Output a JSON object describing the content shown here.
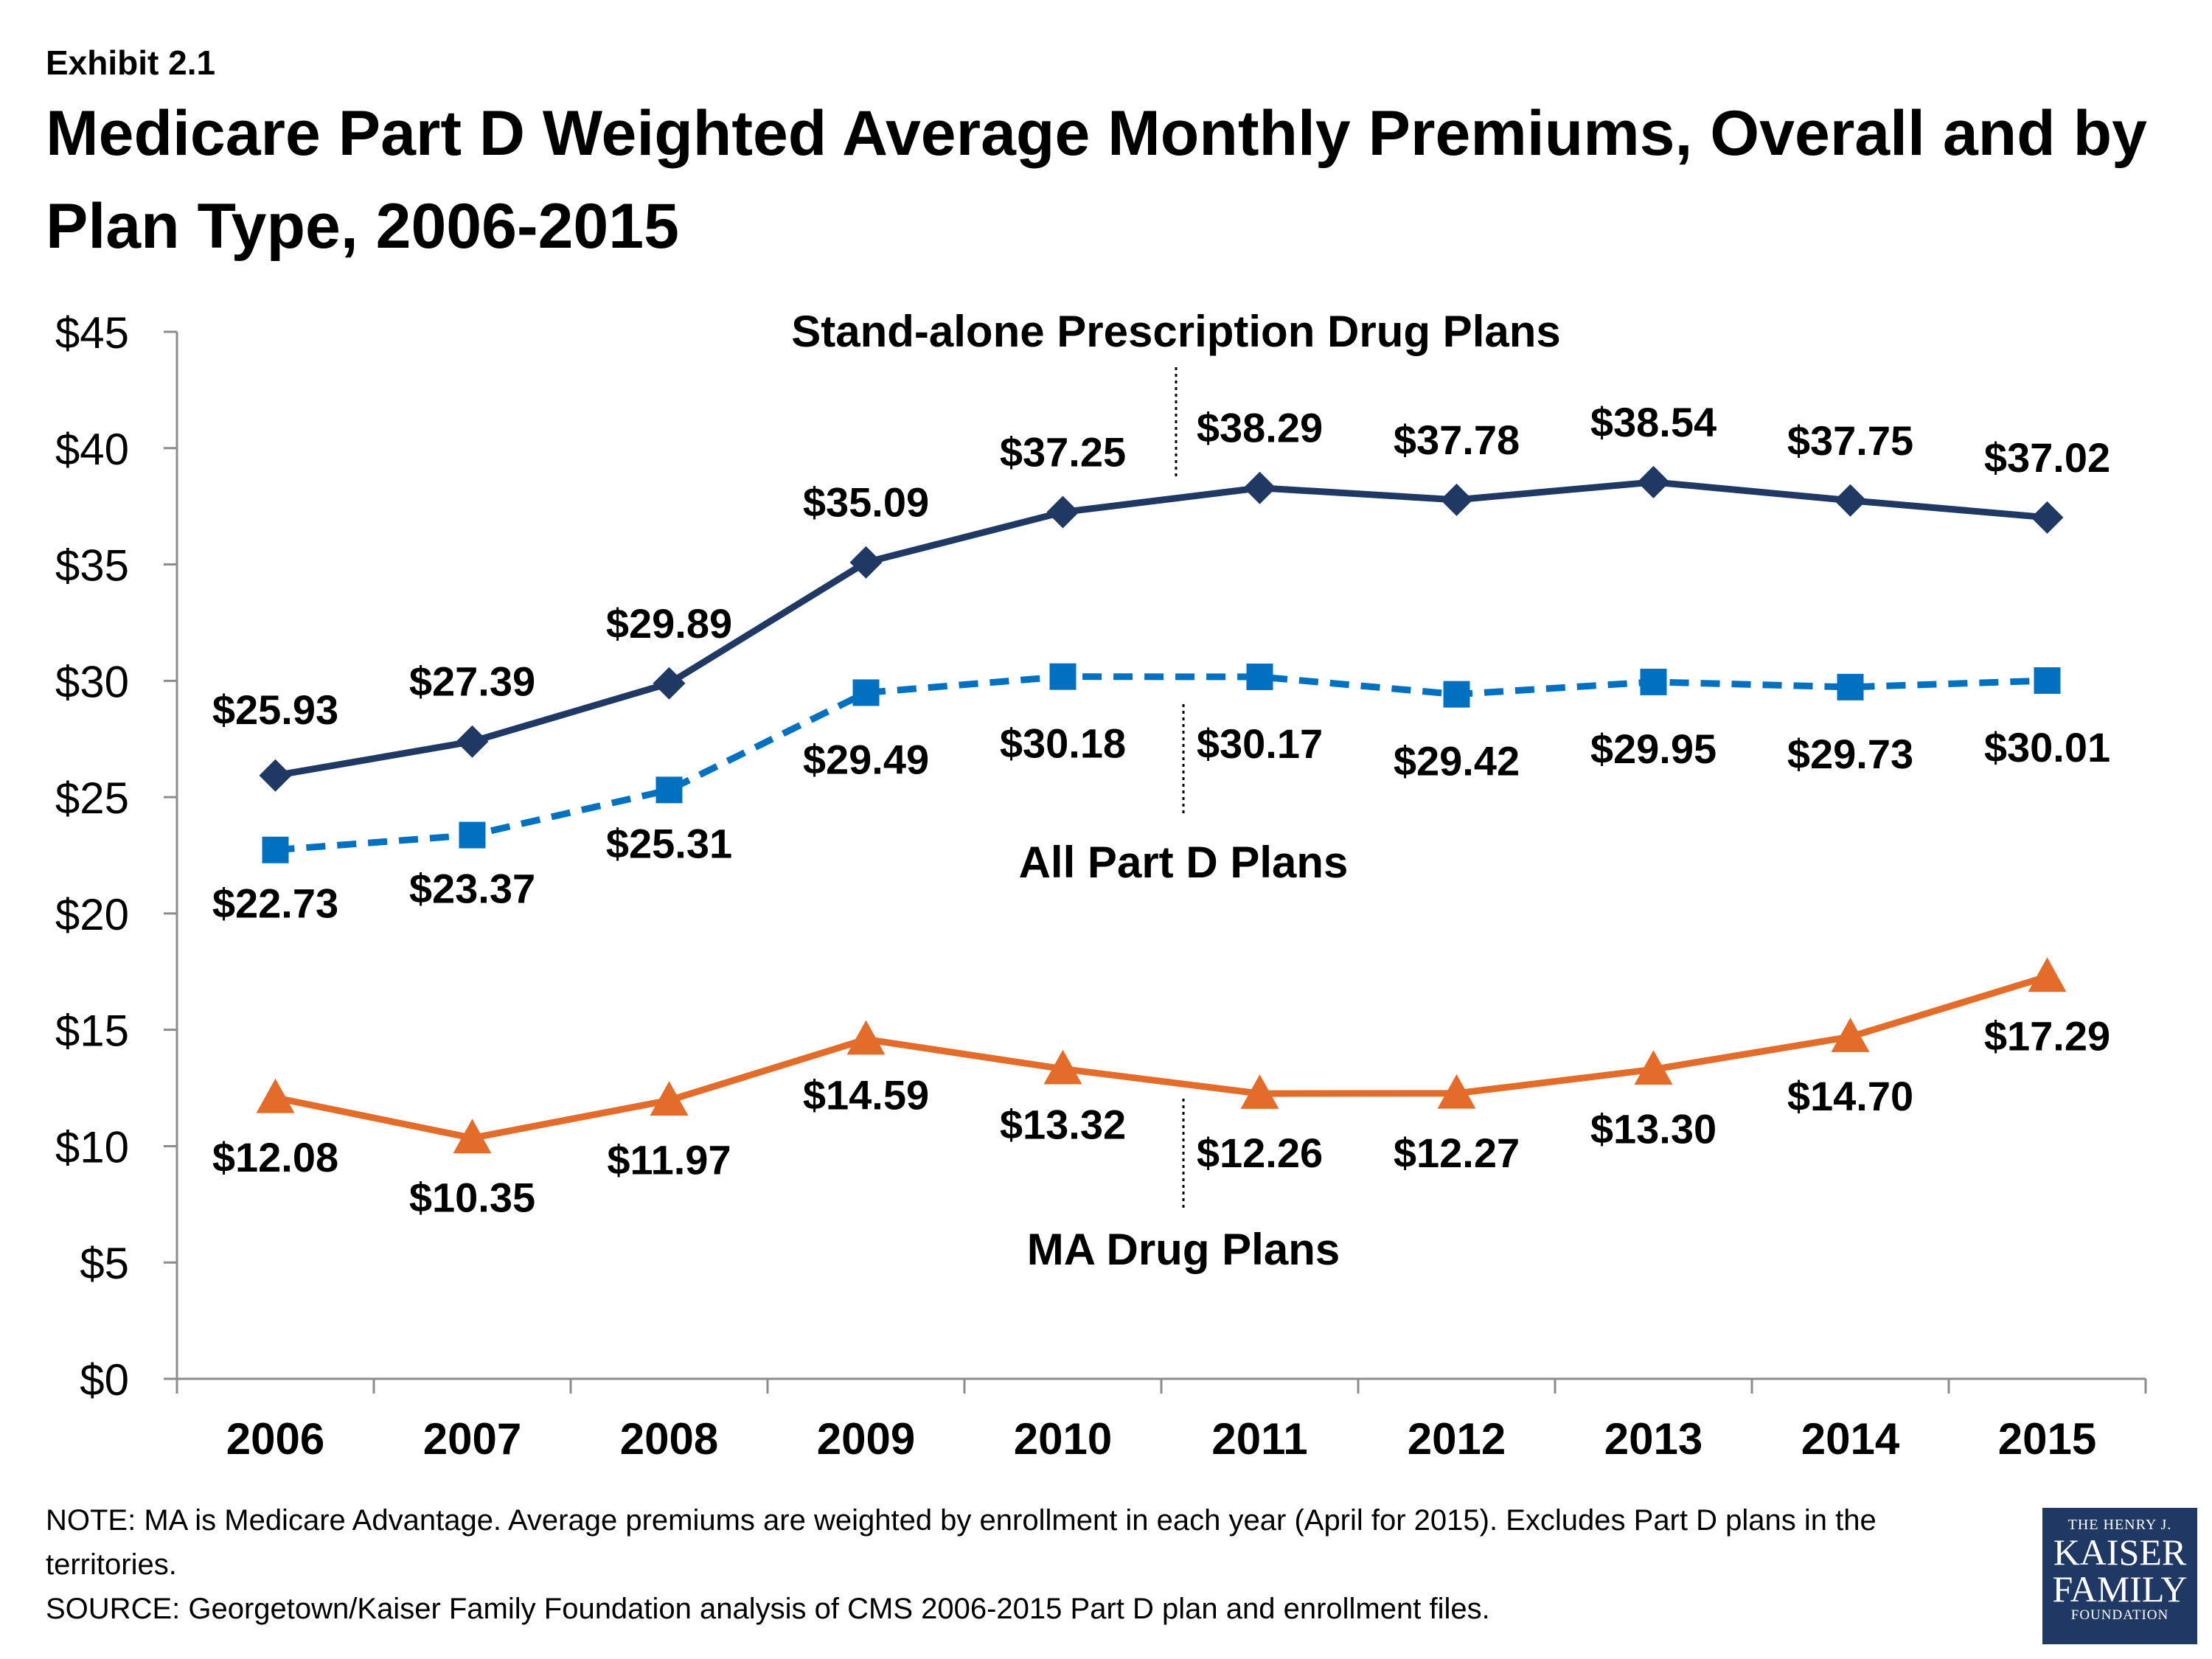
{
  "exhibit": "Exhibit 2.1",
  "title": "Medicare Part D Weighted Average Monthly Premiums, Overall and by Plan Type, 2006-2015",
  "chart_data": {
    "type": "line",
    "categories": [
      "2006",
      "2007",
      "2008",
      "2009",
      "2010",
      "2011",
      "2012",
      "2013",
      "2014",
      "2015"
    ],
    "ylim": [
      0,
      45
    ],
    "yticks": [
      0,
      5,
      10,
      15,
      20,
      25,
      30,
      35,
      40,
      45
    ],
    "ytick_labels": [
      "$0",
      "$5",
      "$10",
      "$15",
      "$20",
      "$25",
      "$30",
      "$35",
      "$40",
      "$45"
    ],
    "grid": false,
    "series": [
      {
        "name": "Stand-alone Prescription Drug Plans",
        "values": [
          25.93,
          27.39,
          29.89,
          35.09,
          37.25,
          38.29,
          37.78,
          38.54,
          37.75,
          37.02
        ],
        "labels": [
          "$25.93",
          "$27.39",
          "$29.89",
          "$35.09",
          "$37.25",
          "$38.29",
          "$37.78",
          "$38.54",
          "$37.75",
          "$37.02"
        ],
        "color": "#1f3864",
        "marker": "diamond",
        "dash": false
      },
      {
        "name": "All Part D Plans",
        "values": [
          22.73,
          23.37,
          25.31,
          29.49,
          30.18,
          30.17,
          29.42,
          29.95,
          29.73,
          30.01
        ],
        "labels": [
          "$22.73",
          "$23.37",
          "$25.31",
          "$29.49",
          "$30.18",
          "$30.17",
          "$29.42",
          "$29.95",
          "$29.73",
          "$30.01"
        ],
        "color": "#0070c0",
        "marker": "square",
        "dash": true
      },
      {
        "name": "MA Drug Plans",
        "values": [
          12.08,
          10.35,
          11.97,
          14.59,
          13.32,
          12.26,
          12.27,
          13.3,
          14.7,
          17.29
        ],
        "labels": [
          "$12.08",
          "$10.35",
          "$11.97",
          "$14.59",
          "$13.32",
          "$12.26",
          "$12.27",
          "$13.30",
          "$14.70",
          "$17.29"
        ],
        "color": "#e46c2a",
        "marker": "triangle",
        "dash": false
      }
    ]
  },
  "footer": {
    "note": "NOTE: MA is Medicare Advantage. Average premiums are weighted by enrollment in each year (April for 2015). Excludes Part D plans in the territories.",
    "source": "SOURCE: Georgetown/Kaiser Family Foundation analysis of CMS 2006-2015 Part D plan and enrollment files."
  },
  "logo": {
    "line1": "THE HENRY J.",
    "line2": "KAISER",
    "line3": "FAMILY",
    "line4": "FOUNDATION"
  }
}
